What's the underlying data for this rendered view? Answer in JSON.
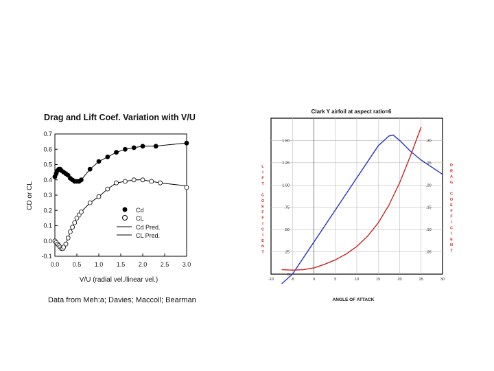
{
  "chart_data": [
    {
      "type": "scatter",
      "title": "Drag and Lift Coef. Variation with V/U",
      "xlabel": "V/U (radial vel./linear vel.)",
      "ylabel": "CD or CL",
      "xlim": [
        0.0,
        3.0
      ],
      "ylim": [
        -0.1,
        0.7
      ],
      "x_ticks": [
        "0.0",
        "0.5",
        "1.0",
        "1.5",
        "2.0",
        "2.5",
        "3.0"
      ],
      "y_ticks": [
        "-0.1",
        "0.0",
        "0.1",
        "0.2",
        "0.3",
        "0.4",
        "0.5",
        "0.6",
        "0.7"
      ],
      "x_tick_values": [
        0,
        0.5,
        1,
        1.5,
        2,
        2.5,
        3
      ],
      "y_tick_values": [
        -0.1,
        0,
        0.1,
        0.2,
        0.3,
        0.4,
        0.5,
        0.6,
        0.7
      ],
      "legend": [
        "Cd",
        "CL",
        "Cd Pred.",
        "CL Pred."
      ],
      "legend_position": "center-right",
      "source_note": "Data from Meh:a; Davies; Maccoll; Bearman",
      "series": [
        {
          "name": "Cd",
          "marker": "filled-circle",
          "x": [
            0.0,
            0.03,
            0.06,
            0.09,
            0.12,
            0.15,
            0.2,
            0.25,
            0.3,
            0.35,
            0.4,
            0.45,
            0.5,
            0.55,
            0.6,
            0.8,
            1.0,
            1.2,
            1.4,
            1.6,
            1.8,
            2.0,
            2.3,
            3.0
          ],
          "y": [
            0.42,
            0.44,
            0.46,
            0.47,
            0.47,
            0.46,
            0.45,
            0.44,
            0.43,
            0.41,
            0.4,
            0.39,
            0.39,
            0.39,
            0.4,
            0.47,
            0.52,
            0.55,
            0.58,
            0.6,
            0.61,
            0.62,
            0.62,
            0.64
          ]
        },
        {
          "name": "CL",
          "marker": "open-circle",
          "x": [
            0.0,
            0.03,
            0.06,
            0.09,
            0.12,
            0.15,
            0.18,
            0.2,
            0.25,
            0.3,
            0.35,
            0.4,
            0.45,
            0.5,
            0.55,
            0.6,
            0.8,
            1.0,
            1.2,
            1.4,
            1.6,
            1.8,
            2.0,
            2.2,
            2.4,
            3.0
          ],
          "y": [
            0.0,
            -0.01,
            -0.02,
            -0.03,
            -0.04,
            -0.05,
            -0.05,
            -0.04,
            -0.02,
            0.02,
            0.06,
            0.09,
            0.12,
            0.15,
            0.17,
            0.19,
            0.25,
            0.29,
            0.34,
            0.38,
            0.39,
            0.4,
            0.4,
            0.39,
            0.38,
            0.35
          ]
        },
        {
          "name": "Cd Pred.",
          "marker": "line",
          "x": [
            0.0,
            0.1,
            0.2,
            0.3,
            0.4,
            0.5,
            0.6,
            0.8,
            1.0,
            1.2,
            1.4,
            1.6,
            1.8,
            2.0,
            2.3,
            2.6,
            3.0
          ],
          "y": [
            0.43,
            0.47,
            0.45,
            0.43,
            0.41,
            0.39,
            0.4,
            0.47,
            0.52,
            0.55,
            0.58,
            0.6,
            0.61,
            0.62,
            0.62,
            0.63,
            0.64
          ]
        },
        {
          "name": "CL Pred.",
          "marker": "line",
          "x": [
            0.0,
            0.1,
            0.18,
            0.25,
            0.3,
            0.4,
            0.5,
            0.6,
            0.8,
            1.0,
            1.2,
            1.4,
            1.6,
            1.8,
            2.0,
            2.2,
            2.4,
            2.7,
            3.0
          ],
          "y": [
            0.0,
            -0.03,
            -0.05,
            -0.02,
            0.02,
            0.09,
            0.15,
            0.19,
            0.25,
            0.29,
            0.34,
            0.38,
            0.39,
            0.4,
            0.4,
            0.39,
            0.38,
            0.37,
            0.36
          ]
        }
      ]
    },
    {
      "type": "line",
      "title": "Clark Y airfoil at aspect ratio=6",
      "xlabel": "ANGLE OF ATTACK",
      "ylabel_left": "LIFT COEFFICIENT",
      "ylabel_right": "DRAG COEFFICIENT",
      "xlim": [
        -10,
        30
      ],
      "ylim_left": [
        0,
        1.75
      ],
      "ylim_right": [
        0,
        0.35
      ],
      "x_ticks": [
        "-10",
        "-5",
        "0",
        "5",
        "10",
        "15",
        "20",
        "25",
        "30"
      ],
      "x_tick_values": [
        -10,
        -5,
        0,
        5,
        10,
        15,
        20,
        25,
        30
      ],
      "left_ticks": [
        "0",
        ".25",
        ".50",
        ".75",
        "1.00",
        "1.25",
        "1.50"
      ],
      "left_tick_values": [
        0,
        0.25,
        0.5,
        0.75,
        1.0,
        1.25,
        1.5
      ],
      "right_ticks": [
        ".05",
        ".10",
        ".15",
        ".20",
        ".25",
        ".30"
      ],
      "right_tick_values": [
        0.05,
        0.1,
        0.15,
        0.2,
        0.25,
        0.3
      ],
      "grid": true,
      "series": [
        {
          "name": "Lift coefficient",
          "axis": "left",
          "color": "#2233cc",
          "x": [
            -7.5,
            -5,
            0,
            5,
            10,
            15,
            17.5,
            18.5,
            20,
            22.5,
            25,
            27.5,
            30
          ],
          "y": [
            -0.15,
            0.0,
            0.36,
            0.72,
            1.08,
            1.44,
            1.55,
            1.56,
            1.5,
            1.38,
            1.28,
            1.2,
            1.12
          ]
        },
        {
          "name": "Drag coefficient",
          "axis": "right",
          "color": "#cc2222",
          "x": [
            -7.5,
            -5,
            -2.5,
            0,
            2.5,
            5,
            7.5,
            10,
            12.5,
            15,
            17.5,
            20,
            22.5,
            25
          ],
          "y": [
            0.01,
            0.009,
            0.01,
            0.014,
            0.022,
            0.032,
            0.045,
            0.062,
            0.085,
            0.115,
            0.155,
            0.205,
            0.265,
            0.33
          ]
        }
      ]
    }
  ]
}
